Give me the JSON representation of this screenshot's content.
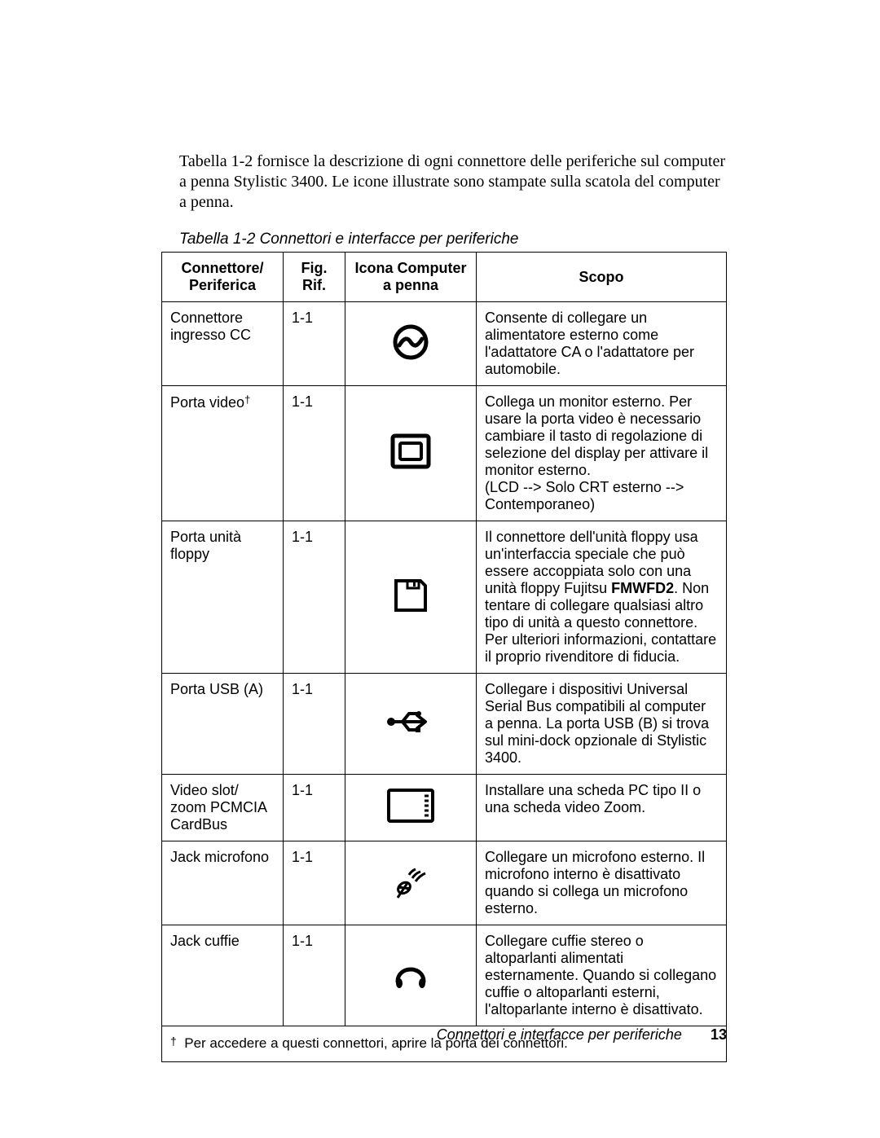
{
  "intro": "Tabella 1-2 fornisce la descrizione di ogni connettore delle periferiche sul computer a penna Stylistic 3400. Le icone illustrate sono stampate sulla scatola del computer a penna.",
  "caption": "Tabella 1-2  Connettori e interfacce per periferiche",
  "columns": {
    "connettore": "Connettore/\nPeriferica",
    "fig": "Fig.\nRif.",
    "icona": "Icona Computer\na penna",
    "scopo": "Scopo"
  },
  "rows": [
    {
      "connettore": "Connettore ingresso CC",
      "dagger": false,
      "fig": "1-1",
      "icon": "dc-in",
      "scopo": "Consente di collegare un alimentatore esterno come l'adattatore CA o l'adattatore per automobile."
    },
    {
      "connettore": "Porta video",
      "dagger": true,
      "fig": "1-1",
      "icon": "video",
      "scopo": "Collega un monitor esterno. Per usare la porta video è necessario cambiare il tasto di regolazione di selezione del display per attivare il monitor esterno.\n(LCD --> Solo CRT esterno --> Contemporaneo)"
    },
    {
      "connettore": "Porta unità floppy",
      "dagger": false,
      "fig": "1-1",
      "icon": "floppy",
      "scopo": "Il connettore dell'unità floppy usa un'interfaccia speciale che può essere accoppiata solo con una unità floppy Fujitsu <b>FMWFD2</b>. Non tentare di collegare qualsiasi altro tipo di unità a questo connettore. Per ulteriori informazioni, contattare il proprio rivenditore di fiducia."
    },
    {
      "connettore": "Porta USB (A)",
      "dagger": false,
      "fig": "1-1",
      "icon": "usb",
      "scopo": "Collegare i dispositivi Universal Serial Bus compatibili al computer a penna.  La porta USB (B) si trova sul mini-dock opzionale di Stylistic 3400."
    },
    {
      "connettore": "Video slot/ zoom PCMCIA CardBus",
      "dagger": false,
      "fig": "1-1",
      "icon": "pcmcia",
      "scopo": "Installare una scheda PC tipo II o una scheda video Zoom."
    },
    {
      "connettore": "Jack microfono",
      "dagger": false,
      "fig": "1-1",
      "icon": "mic",
      "scopo": "Collegare un microfono esterno. Il microfono interno è disattivato quando si collega un microfono esterno."
    },
    {
      "connettore": "Jack cuffie",
      "dagger": false,
      "fig": "1-1",
      "icon": "headphones",
      "scopo": "Collegare cuffie stereo o altoparlanti alimentati esternamente. Quando si collegano cuffie o altoparlanti esterni, l'altoparlante interno è disattivato."
    }
  ],
  "footnote": "Per accedere a questi connettori, aprire la porta dei connettori.",
  "footer": {
    "title": "Connettori e interfacce per periferiche",
    "page": "13"
  },
  "icon_stroke": "#000000",
  "icon_size": 48
}
